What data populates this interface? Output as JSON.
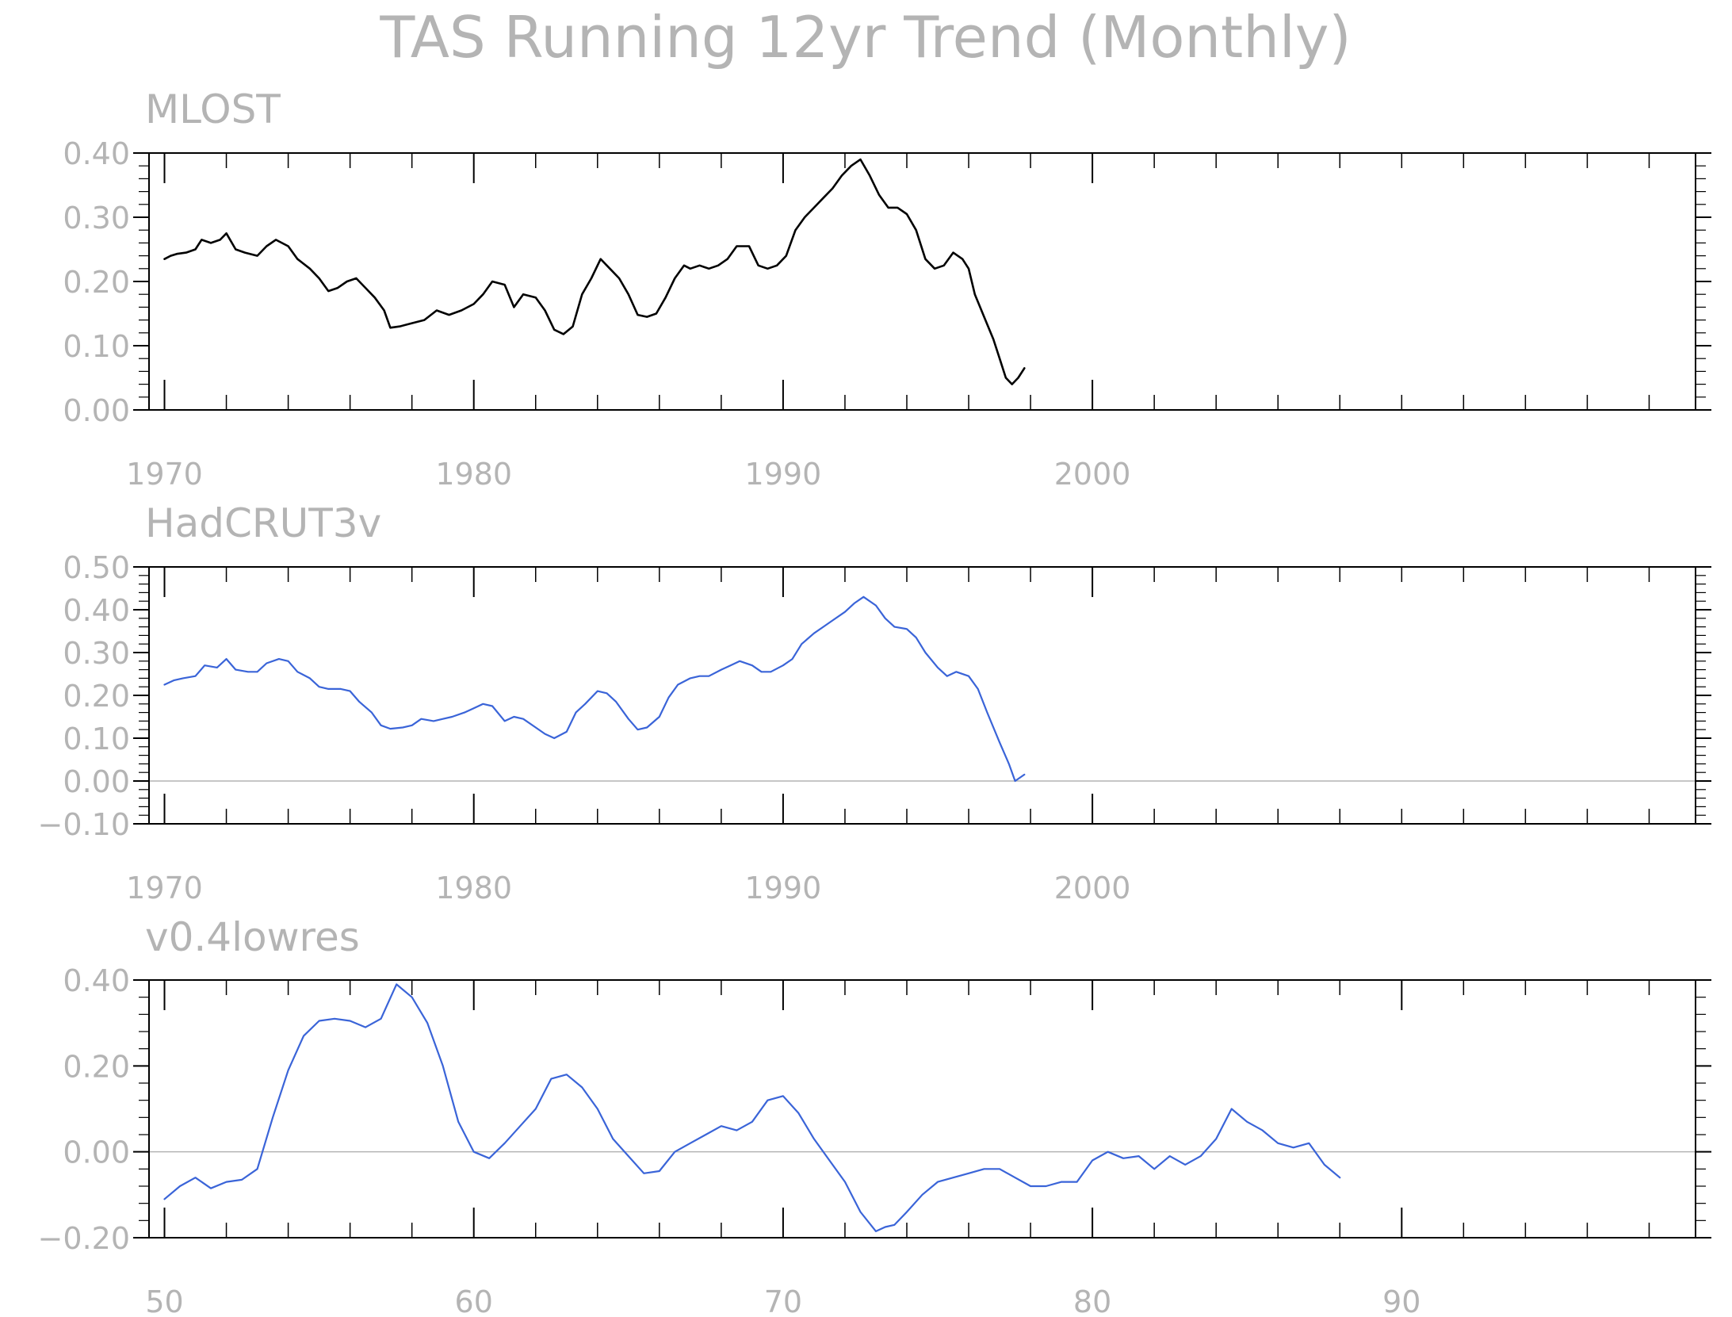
{
  "figure": {
    "title": "TAS Running 12yr Trend (Monthly)",
    "text_color": "#b4b4b4",
    "axis_color": "#000000"
  },
  "chart_data": [
    {
      "type": "line",
      "title": "MLOST",
      "xlabel": "",
      "ylabel": "",
      "x_units": "year",
      "xlim": [
        1969.5,
        2019.5
      ],
      "ylim": [
        0.0,
        0.4
      ],
      "x_ticks": [
        1970,
        1980,
        1990,
        2000
      ],
      "x_tick_labels": [
        "1970",
        "1980",
        "1990",
        "2000"
      ],
      "y_ticks": [
        0.0,
        0.1,
        0.2,
        0.3,
        0.4
      ],
      "y_tick_labels": [
        "0.00",
        "0.10",
        "0.20",
        "0.30",
        "0.40"
      ],
      "zero_line": false,
      "grid": false,
      "series": [
        {
          "color": "#000000",
          "x": [
            1970.0,
            1970.2,
            1970.4,
            1970.7,
            1971.0,
            1971.2,
            1971.5,
            1971.8,
            1972.0,
            1972.3,
            1972.6,
            1973.0,
            1973.3,
            1973.6,
            1974.0,
            1974.3,
            1974.7,
            1975.0,
            1975.3,
            1975.6,
            1975.9,
            1976.2,
            1976.5,
            1976.8,
            1977.1,
            1977.3,
            1977.6,
            1978.0,
            1978.4,
            1978.8,
            1979.2,
            1979.6,
            1980.0,
            1980.3,
            1980.6,
            1981.0,
            1981.3,
            1981.6,
            1982.0,
            1982.3,
            1982.6,
            1982.9,
            1983.2,
            1983.5,
            1983.8,
            1984.1,
            1984.4,
            1984.7,
            1985.0,
            1985.3,
            1985.6,
            1985.9,
            1986.2,
            1986.5,
            1986.8,
            1987.0,
            1987.3,
            1987.6,
            1987.9,
            1988.2,
            1988.5,
            1988.9,
            1989.2,
            1989.5,
            1989.8,
            1990.1,
            1990.4,
            1990.7,
            1991.0,
            1991.3,
            1991.6,
            1991.9,
            1992.2,
            1992.5,
            1992.8,
            1993.1,
            1993.4,
            1993.7,
            1994.0,
            1994.3,
            1994.6,
            1994.9,
            1995.2,
            1995.5,
            1995.8,
            1996.0,
            1996.2,
            1996.5,
            1996.8,
            1997.0,
            1997.2,
            1997.4,
            1997.6,
            1997.8
          ],
          "y": [
            0.235,
            0.24,
            0.243,
            0.245,
            0.25,
            0.265,
            0.26,
            0.265,
            0.275,
            0.25,
            0.245,
            0.24,
            0.255,
            0.265,
            0.255,
            0.235,
            0.22,
            0.205,
            0.185,
            0.19,
            0.2,
            0.205,
            0.19,
            0.175,
            0.155,
            0.128,
            0.13,
            0.135,
            0.14,
            0.155,
            0.148,
            0.155,
            0.165,
            0.18,
            0.2,
            0.195,
            0.16,
            0.18,
            0.175,
            0.155,
            0.125,
            0.118,
            0.13,
            0.18,
            0.205,
            0.235,
            0.22,
            0.205,
            0.18,
            0.148,
            0.145,
            0.15,
            0.175,
            0.205,
            0.225,
            0.22,
            0.225,
            0.22,
            0.225,
            0.235,
            0.255,
            0.255,
            0.225,
            0.22,
            0.225,
            0.24,
            0.28,
            0.3,
            0.315,
            0.33,
            0.345,
            0.365,
            0.38,
            0.39,
            0.365,
            0.335,
            0.315,
            0.315,
            0.305,
            0.28,
            0.235,
            0.22,
            0.225,
            0.245,
            0.235,
            0.22,
            0.18,
            0.145,
            0.11,
            0.08,
            0.05,
            0.04,
            0.05,
            0.065
          ]
        }
      ]
    },
    {
      "type": "line",
      "title": "HadCRUT3v",
      "xlabel": "",
      "ylabel": "",
      "x_units": "year",
      "xlim": [
        1969.5,
        2019.5
      ],
      "ylim": [
        -0.1,
        0.5
      ],
      "x_ticks": [
        1970,
        1980,
        1990,
        2000
      ],
      "x_tick_labels": [
        "1970",
        "1980",
        "1990",
        "2000"
      ],
      "y_ticks": [
        -0.1,
        0.0,
        0.1,
        0.2,
        0.3,
        0.4,
        0.5
      ],
      "y_tick_labels": [
        "−0.10",
        "0.00",
        "0.10",
        "0.20",
        "0.30",
        "0.40",
        "0.50"
      ],
      "zero_line": true,
      "grid": false,
      "series": [
        {
          "color": "#3a64d8",
          "x": [
            1970.0,
            1970.3,
            1970.6,
            1971.0,
            1971.3,
            1971.7,
            1972.0,
            1972.3,
            1972.7,
            1973.0,
            1973.3,
            1973.7,
            1974.0,
            1974.3,
            1974.7,
            1975.0,
            1975.3,
            1975.7,
            1976.0,
            1976.3,
            1976.7,
            1977.0,
            1977.3,
            1977.7,
            1978.0,
            1978.3,
            1978.7,
            1979.0,
            1979.3,
            1979.7,
            1980.0,
            1980.3,
            1980.6,
            1981.0,
            1981.3,
            1981.6,
            1982.0,
            1982.3,
            1982.6,
            1983.0,
            1983.3,
            1983.6,
            1984.0,
            1984.3,
            1984.6,
            1985.0,
            1985.3,
            1985.6,
            1986.0,
            1986.3,
            1986.6,
            1987.0,
            1987.3,
            1987.6,
            1988.0,
            1988.3,
            1988.6,
            1989.0,
            1989.3,
            1989.6,
            1990.0,
            1990.3,
            1990.6,
            1991.0,
            1991.3,
            1991.6,
            1992.0,
            1992.3,
            1992.6,
            1993.0,
            1993.3,
            1993.6,
            1994.0,
            1994.3,
            1994.6,
            1995.0,
            1995.3,
            1995.6,
            1996.0,
            1996.3,
            1996.6,
            1997.0,
            1997.3,
            1997.5,
            1997.8
          ],
          "y": [
            0.225,
            0.235,
            0.24,
            0.245,
            0.27,
            0.265,
            0.285,
            0.26,
            0.255,
            0.255,
            0.275,
            0.285,
            0.28,
            0.255,
            0.24,
            0.22,
            0.215,
            0.215,
            0.21,
            0.185,
            0.16,
            0.13,
            0.122,
            0.125,
            0.13,
            0.145,
            0.14,
            0.145,
            0.15,
            0.16,
            0.17,
            0.18,
            0.175,
            0.14,
            0.15,
            0.145,
            0.125,
            0.11,
            0.1,
            0.115,
            0.16,
            0.18,
            0.21,
            0.205,
            0.185,
            0.145,
            0.12,
            0.125,
            0.15,
            0.195,
            0.225,
            0.24,
            0.245,
            0.245,
            0.26,
            0.27,
            0.28,
            0.27,
            0.255,
            0.255,
            0.27,
            0.285,
            0.32,
            0.345,
            0.36,
            0.375,
            0.395,
            0.415,
            0.43,
            0.41,
            0.38,
            0.36,
            0.355,
            0.335,
            0.3,
            0.265,
            0.245,
            0.255,
            0.245,
            0.215,
            0.16,
            0.09,
            0.04,
            0.0,
            0.015
          ]
        }
      ]
    },
    {
      "type": "line",
      "title": "v0.4lowres",
      "xlabel": "",
      "ylabel": "",
      "x_units": "year",
      "xlim": [
        49.5,
        99.5
      ],
      "ylim": [
        -0.2,
        0.4
      ],
      "x_ticks": [
        50,
        60,
        70,
        80,
        90
      ],
      "x_tick_labels": [
        "50",
        "60",
        "70",
        "80",
        "90"
      ],
      "y_ticks": [
        -0.2,
        0.0,
        0.2,
        0.4
      ],
      "y_tick_labels": [
        "−0.20",
        "0.00",
        "0.20",
        "0.40"
      ],
      "zero_line": true,
      "grid": false,
      "series": [
        {
          "color": "#3a64d8",
          "x": [
            50.0,
            50.5,
            51.0,
            51.5,
            52.0,
            52.5,
            53.0,
            53.5,
            54.0,
            54.5,
            55.0,
            55.5,
            56.0,
            56.5,
            57.0,
            57.5,
            58.0,
            58.5,
            59.0,
            59.5,
            60.0,
            60.5,
            61.0,
            61.5,
            62.0,
            62.5,
            63.0,
            63.5,
            64.0,
            64.5,
            65.0,
            65.5,
            66.0,
            66.5,
            67.0,
            67.5,
            68.0,
            68.5,
            69.0,
            69.5,
            70.0,
            70.5,
            71.0,
            71.5,
            72.0,
            72.5,
            73.0,
            73.3,
            73.6,
            74.0,
            74.5,
            75.0,
            75.5,
            76.0,
            76.5,
            77.0,
            77.5,
            78.0,
            78.5,
            79.0,
            79.5,
            80.0,
            80.5,
            81.0,
            81.5,
            82.0,
            82.5,
            83.0,
            83.5,
            84.0,
            84.5,
            85.0,
            85.5,
            86.0,
            86.5,
            87.0,
            87.5,
            88.0
          ],
          "y": [
            -0.11,
            -0.08,
            -0.06,
            -0.085,
            -0.07,
            -0.065,
            -0.04,
            0.08,
            0.19,
            0.27,
            0.305,
            0.31,
            0.305,
            0.29,
            0.31,
            0.39,
            0.36,
            0.3,
            0.2,
            0.07,
            0.0,
            -0.015,
            0.02,
            0.06,
            0.1,
            0.17,
            0.18,
            0.15,
            0.1,
            0.03,
            -0.01,
            -0.05,
            -0.045,
            0.0,
            0.02,
            0.04,
            0.06,
            0.05,
            0.07,
            0.12,
            0.13,
            0.09,
            0.03,
            -0.02,
            -0.07,
            -0.14,
            -0.185,
            -0.175,
            -0.17,
            -0.14,
            -0.1,
            -0.07,
            -0.06,
            -0.05,
            -0.04,
            -0.04,
            -0.06,
            -0.08,
            -0.08,
            -0.07,
            -0.07,
            -0.02,
            0.0,
            -0.015,
            -0.01,
            -0.04,
            -0.01,
            -0.03,
            -0.01,
            0.03,
            0.1,
            0.07,
            0.05,
            0.02,
            0.01,
            0.02,
            -0.03,
            -0.06
          ]
        }
      ]
    }
  ]
}
